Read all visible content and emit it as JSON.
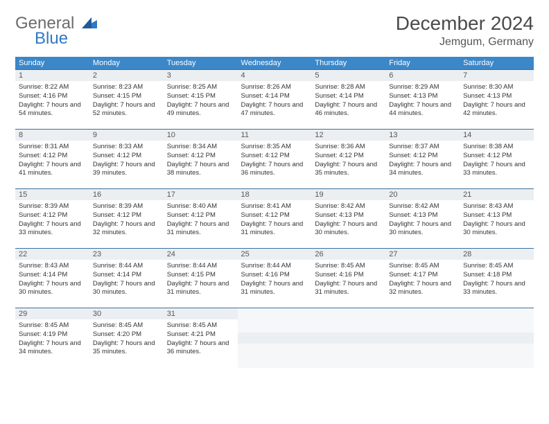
{
  "logo": {
    "general": "General",
    "blue": "Blue"
  },
  "title": "December 2024",
  "location": "Jemgum, Germany",
  "colors": {
    "header_bg": "#3b87c8",
    "header_text": "#ffffff",
    "daynum_bg": "#eceff1",
    "border": "#3b6fa0",
    "logo_gray": "#6b6b6b",
    "logo_blue": "#2f78c4"
  },
  "day_headers": [
    "Sunday",
    "Monday",
    "Tuesday",
    "Wednesday",
    "Thursday",
    "Friday",
    "Saturday"
  ],
  "weeks": [
    [
      {
        "n": "1",
        "sr": "Sunrise: 8:22 AM",
        "ss": "Sunset: 4:16 PM",
        "dl": "Daylight: 7 hours and 54 minutes."
      },
      {
        "n": "2",
        "sr": "Sunrise: 8:23 AM",
        "ss": "Sunset: 4:15 PM",
        "dl": "Daylight: 7 hours and 52 minutes."
      },
      {
        "n": "3",
        "sr": "Sunrise: 8:25 AM",
        "ss": "Sunset: 4:15 PM",
        "dl": "Daylight: 7 hours and 49 minutes."
      },
      {
        "n": "4",
        "sr": "Sunrise: 8:26 AM",
        "ss": "Sunset: 4:14 PM",
        "dl": "Daylight: 7 hours and 47 minutes."
      },
      {
        "n": "5",
        "sr": "Sunrise: 8:28 AM",
        "ss": "Sunset: 4:14 PM",
        "dl": "Daylight: 7 hours and 46 minutes."
      },
      {
        "n": "6",
        "sr": "Sunrise: 8:29 AM",
        "ss": "Sunset: 4:13 PM",
        "dl": "Daylight: 7 hours and 44 minutes."
      },
      {
        "n": "7",
        "sr": "Sunrise: 8:30 AM",
        "ss": "Sunset: 4:13 PM",
        "dl": "Daylight: 7 hours and 42 minutes."
      }
    ],
    [
      {
        "n": "8",
        "sr": "Sunrise: 8:31 AM",
        "ss": "Sunset: 4:12 PM",
        "dl": "Daylight: 7 hours and 41 minutes."
      },
      {
        "n": "9",
        "sr": "Sunrise: 8:33 AM",
        "ss": "Sunset: 4:12 PM",
        "dl": "Daylight: 7 hours and 39 minutes."
      },
      {
        "n": "10",
        "sr": "Sunrise: 8:34 AM",
        "ss": "Sunset: 4:12 PM",
        "dl": "Daylight: 7 hours and 38 minutes."
      },
      {
        "n": "11",
        "sr": "Sunrise: 8:35 AM",
        "ss": "Sunset: 4:12 PM",
        "dl": "Daylight: 7 hours and 36 minutes."
      },
      {
        "n": "12",
        "sr": "Sunrise: 8:36 AM",
        "ss": "Sunset: 4:12 PM",
        "dl": "Daylight: 7 hours and 35 minutes."
      },
      {
        "n": "13",
        "sr": "Sunrise: 8:37 AM",
        "ss": "Sunset: 4:12 PM",
        "dl": "Daylight: 7 hours and 34 minutes."
      },
      {
        "n": "14",
        "sr": "Sunrise: 8:38 AM",
        "ss": "Sunset: 4:12 PM",
        "dl": "Daylight: 7 hours and 33 minutes."
      }
    ],
    [
      {
        "n": "15",
        "sr": "Sunrise: 8:39 AM",
        "ss": "Sunset: 4:12 PM",
        "dl": "Daylight: 7 hours and 33 minutes."
      },
      {
        "n": "16",
        "sr": "Sunrise: 8:39 AM",
        "ss": "Sunset: 4:12 PM",
        "dl": "Daylight: 7 hours and 32 minutes."
      },
      {
        "n": "17",
        "sr": "Sunrise: 8:40 AM",
        "ss": "Sunset: 4:12 PM",
        "dl": "Daylight: 7 hours and 31 minutes."
      },
      {
        "n": "18",
        "sr": "Sunrise: 8:41 AM",
        "ss": "Sunset: 4:12 PM",
        "dl": "Daylight: 7 hours and 31 minutes."
      },
      {
        "n": "19",
        "sr": "Sunrise: 8:42 AM",
        "ss": "Sunset: 4:13 PM",
        "dl": "Daylight: 7 hours and 30 minutes."
      },
      {
        "n": "20",
        "sr": "Sunrise: 8:42 AM",
        "ss": "Sunset: 4:13 PM",
        "dl": "Daylight: 7 hours and 30 minutes."
      },
      {
        "n": "21",
        "sr": "Sunrise: 8:43 AM",
        "ss": "Sunset: 4:13 PM",
        "dl": "Daylight: 7 hours and 30 minutes."
      }
    ],
    [
      {
        "n": "22",
        "sr": "Sunrise: 8:43 AM",
        "ss": "Sunset: 4:14 PM",
        "dl": "Daylight: 7 hours and 30 minutes."
      },
      {
        "n": "23",
        "sr": "Sunrise: 8:44 AM",
        "ss": "Sunset: 4:14 PM",
        "dl": "Daylight: 7 hours and 30 minutes."
      },
      {
        "n": "24",
        "sr": "Sunrise: 8:44 AM",
        "ss": "Sunset: 4:15 PM",
        "dl": "Daylight: 7 hours and 31 minutes."
      },
      {
        "n": "25",
        "sr": "Sunrise: 8:44 AM",
        "ss": "Sunset: 4:16 PM",
        "dl": "Daylight: 7 hours and 31 minutes."
      },
      {
        "n": "26",
        "sr": "Sunrise: 8:45 AM",
        "ss": "Sunset: 4:16 PM",
        "dl": "Daylight: 7 hours and 31 minutes."
      },
      {
        "n": "27",
        "sr": "Sunrise: 8:45 AM",
        "ss": "Sunset: 4:17 PM",
        "dl": "Daylight: 7 hours and 32 minutes."
      },
      {
        "n": "28",
        "sr": "Sunrise: 8:45 AM",
        "ss": "Sunset: 4:18 PM",
        "dl": "Daylight: 7 hours and 33 minutes."
      }
    ],
    [
      {
        "n": "29",
        "sr": "Sunrise: 8:45 AM",
        "ss": "Sunset: 4:19 PM",
        "dl": "Daylight: 7 hours and 34 minutes."
      },
      {
        "n": "30",
        "sr": "Sunrise: 8:45 AM",
        "ss": "Sunset: 4:20 PM",
        "dl": "Daylight: 7 hours and 35 minutes."
      },
      {
        "n": "31",
        "sr": "Sunrise: 8:45 AM",
        "ss": "Sunset: 4:21 PM",
        "dl": "Daylight: 7 hours and 36 minutes."
      },
      null,
      null,
      null,
      null
    ]
  ]
}
